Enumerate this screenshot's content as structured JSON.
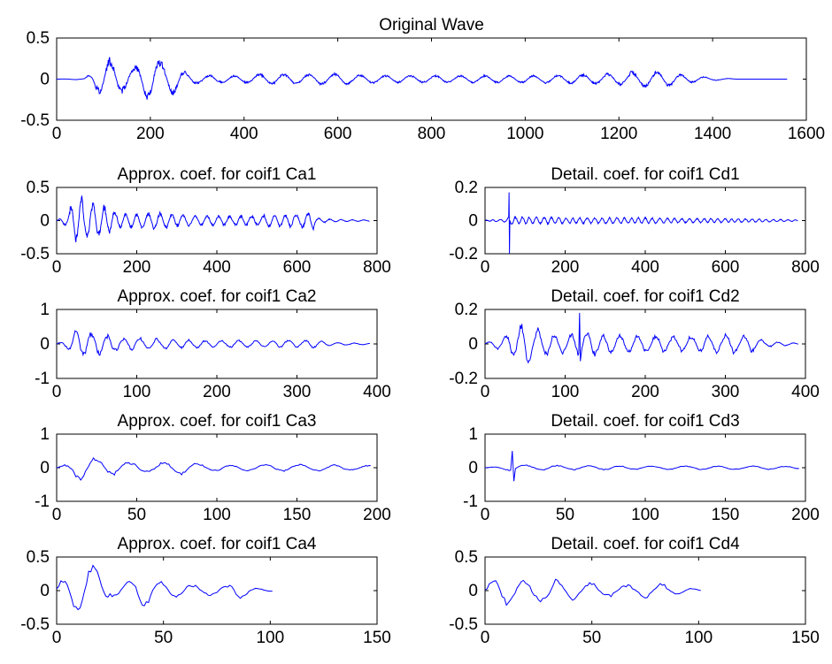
{
  "chart_data": [
    {
      "id": "orig",
      "type": "line",
      "title": "Original Wave",
      "xlim": [
        0,
        1600
      ],
      "ylim": [
        -0.5,
        0.5
      ],
      "xticks": [
        "0",
        "200",
        "400",
        "600",
        "800",
        "1000",
        "1200",
        "1400",
        "1600"
      ],
      "yticks": [
        "0.5",
        "0",
        "-0.5"
      ],
      "n": 1560,
      "x": [
        0,
        60,
        80,
        100,
        110,
        120,
        140,
        160,
        180,
        200,
        220,
        240,
        260,
        280,
        300,
        350,
        400,
        450,
        500,
        550,
        600,
        650,
        700,
        800,
        900,
        1000,
        1100,
        1200,
        1250,
        1300,
        1350,
        1400,
        1460,
        1560
      ],
      "amp": [
        0,
        0.01,
        0.12,
        0.25,
        0.3,
        0.25,
        0.18,
        0.17,
        0.22,
        0.28,
        0.25,
        0.22,
        0.15,
        0.08,
        0.06,
        0.05,
        0.05,
        0.08,
        0.07,
        0.07,
        0.08,
        0.06,
        0.05,
        0.05,
        0.05,
        0.05,
        0.06,
        0.08,
        0.12,
        0.1,
        0.05,
        0.02,
        0,
        0
      ],
      "hz": 0.12,
      "pulses": []
    },
    {
      "id": "ca1",
      "type": "line",
      "title": "Approx. coef. for coif1  Ca1",
      "xlim": [
        0,
        800
      ],
      "ylim": [
        -0.5,
        0.5
      ],
      "xticks": [
        "0",
        "200",
        "400",
        "600",
        "800"
      ],
      "yticks": [
        "0.5",
        "0",
        "-0.5"
      ],
      "n": 782,
      "x": [
        0,
        25,
        40,
        60,
        80,
        100,
        120,
        140,
        160,
        200,
        250,
        300,
        400,
        500,
        600,
        640,
        650,
        700,
        782
      ],
      "amp": [
        0,
        0.1,
        0.3,
        0.4,
        0.3,
        0.3,
        0.25,
        0.18,
        0.12,
        0.12,
        0.14,
        0.1,
        0.08,
        0.09,
        0.12,
        0.15,
        0.04,
        0.02,
        0.01
      ],
      "hz": 0.22,
      "pulses": []
    },
    {
      "id": "cd1",
      "type": "line",
      "title": "Detail. coef. for coif1  Cd1",
      "xlim": [
        0,
        800
      ],
      "ylim": [
        -0.2,
        0.2
      ],
      "xticks": [
        "0",
        "200",
        "400",
        "600",
        "800"
      ],
      "yticks": [
        "0.2",
        "0",
        "-0.2"
      ],
      "n": 782,
      "x": [
        0,
        50,
        60,
        70,
        100,
        200,
        300,
        400,
        500,
        600,
        700,
        782
      ],
      "amp": [
        0.003,
        0.01,
        0.03,
        0.03,
        0.025,
        0.02,
        0.02,
        0.02,
        0.015,
        0.015,
        0.01,
        0.005
      ],
      "hz": 0.35,
      "pulses": [
        [
          60,
          0.17,
          -0.2
        ]
      ]
    },
    {
      "id": "ca2",
      "type": "line",
      "title": "Approx. coef. for coif1  Ca2",
      "xlim": [
        0,
        400
      ],
      "ylim": [
        -1,
        1
      ],
      "xticks": [
        "0",
        "100",
        "200",
        "300",
        "400"
      ],
      "yticks": [
        "1",
        "0",
        "-1"
      ],
      "n": 392,
      "x": [
        0,
        15,
        25,
        35,
        50,
        60,
        80,
        100,
        150,
        200,
        250,
        300,
        330,
        340,
        392
      ],
      "amp": [
        0,
        0.2,
        0.5,
        0.4,
        0.4,
        0.3,
        0.2,
        0.2,
        0.15,
        0.12,
        0.12,
        0.12,
        0.12,
        0.05,
        0.02
      ],
      "hz": 0.3,
      "pulses": []
    },
    {
      "id": "cd2",
      "type": "line",
      "title": "Detail. coef. for coif1  Cd2",
      "xlim": [
        0,
        400
      ],
      "ylim": [
        -0.2,
        0.2
      ],
      "xticks": [
        "0",
        "100",
        "200",
        "300",
        "400"
      ],
      "yticks": [
        "0.2",
        "0",
        "-0.2"
      ],
      "n": 392,
      "x": [
        0,
        20,
        40,
        50,
        60,
        70,
        100,
        120,
        150,
        200,
        250,
        300,
        330,
        350,
        392
      ],
      "amp": [
        0.005,
        0.04,
        0.1,
        0.15,
        0.12,
        0.08,
        0.06,
        0.1,
        0.06,
        0.06,
        0.05,
        0.06,
        0.06,
        0.02,
        0.005
      ],
      "hz": 0.3,
      "pulses": [
        [
          118,
          0.18,
          -0.1
        ]
      ]
    },
    {
      "id": "ca3",
      "type": "line",
      "title": "Approx. coef. for coif1  Ca3",
      "xlim": [
        0,
        200
      ],
      "ylim": [
        -1,
        1
      ],
      "xticks": [
        "0",
        "50",
        "100",
        "150",
        "200"
      ],
      "yticks": [
        "1",
        "0",
        "-1"
      ],
      "n": 197,
      "x": [
        0,
        10,
        15,
        20,
        30,
        40,
        60,
        75,
        100,
        150,
        197
      ],
      "amp": [
        0,
        0.2,
        0.5,
        0.4,
        0.3,
        0.2,
        0.15,
        0.25,
        0.1,
        0.12,
        0.08
      ],
      "hz": 0.3,
      "pulses": []
    },
    {
      "id": "cd3",
      "type": "line",
      "title": "Detail. coef. for coif1  Cd3",
      "xlim": [
        0,
        200
      ],
      "ylim": [
        -1,
        1
      ],
      "xticks": [
        "0",
        "50",
        "100",
        "150",
        "200"
      ],
      "yticks": [
        "1",
        "0",
        "-1"
      ],
      "n": 197,
      "x": [
        0,
        10,
        15,
        20,
        30,
        50,
        100,
        150,
        197
      ],
      "amp": [
        0,
        0.05,
        0.1,
        0.1,
        0.08,
        0.08,
        0.06,
        0.06,
        0.05
      ],
      "hz": 0.3,
      "pulses": [
        [
          17,
          0.5,
          -0.4
        ]
      ]
    },
    {
      "id": "ca4",
      "type": "line",
      "title": "Approx. coef. for coif1  Ca4",
      "xlim": [
        0,
        150
      ],
      "ylim": [
        -0.5,
        0.5
      ],
      "xticks": [
        "0",
        "50",
        "100",
        "150"
      ],
      "yticks": [
        "0.5",
        "0",
        "-0.5"
      ],
      "n": 102,
      "x": [
        0,
        5,
        10,
        15,
        20,
        25,
        30,
        40,
        50,
        60,
        70,
        80,
        85,
        90,
        102
      ],
      "amp": [
        0.05,
        0.3,
        0.45,
        0.45,
        0.35,
        0.1,
        0.12,
        0.3,
        0.15,
        0.1,
        0.08,
        0.08,
        0.2,
        0.05,
        0.01
      ],
      "hz": 0.4,
      "pulses": []
    },
    {
      "id": "cd4",
      "type": "line",
      "title": "Detail. coef. for coif1  Cd4",
      "xlim": [
        0,
        150
      ],
      "ylim": [
        -0.5,
        0.5
      ],
      "xticks": [
        "0",
        "50",
        "100",
        "150"
      ],
      "yticks": [
        "0.5",
        "0",
        "-0.5"
      ],
      "n": 102,
      "x": [
        0,
        5,
        10,
        20,
        30,
        40,
        50,
        60,
        70,
        80,
        90,
        102
      ],
      "amp": [
        0.05,
        0.3,
        0.25,
        0.2,
        0.22,
        0.18,
        0.12,
        0.1,
        0.1,
        0.15,
        0.08,
        0.01
      ],
      "hz": 0.4,
      "pulses": []
    }
  ]
}
